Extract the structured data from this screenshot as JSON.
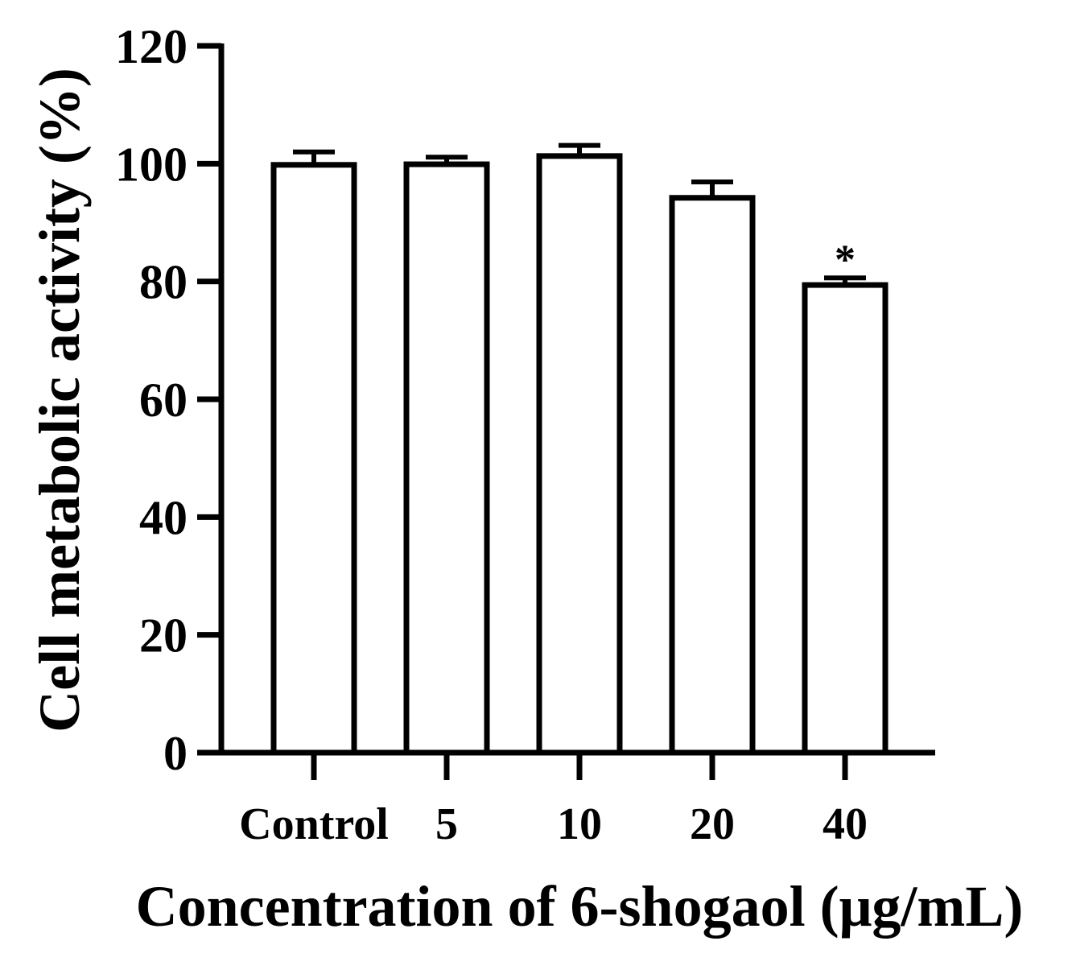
{
  "chart_data": {
    "type": "bar",
    "title": "",
    "xlabel": "Concentration of 6-shogaol (μg/mL)",
    "ylabel": "Cell metabolic activity (%)",
    "categories": [
      "Control",
      "5",
      "10",
      "20",
      "40"
    ],
    "values": [
      99.8,
      99.9,
      101.3,
      94.2,
      79.4
    ],
    "errors": [
      2.2,
      1.2,
      1.8,
      2.7,
      1.2
    ],
    "annotations": [
      "",
      "",
      "",
      "",
      "*"
    ],
    "ylim": [
      0,
      120
    ],
    "yticks": [
      0,
      20,
      40,
      60,
      80,
      100,
      120
    ],
    "grid": false,
    "legend": "none",
    "colors": {
      "bar_fill": "#ffffff",
      "bar_stroke": "#000000",
      "axis": "#000000"
    }
  }
}
